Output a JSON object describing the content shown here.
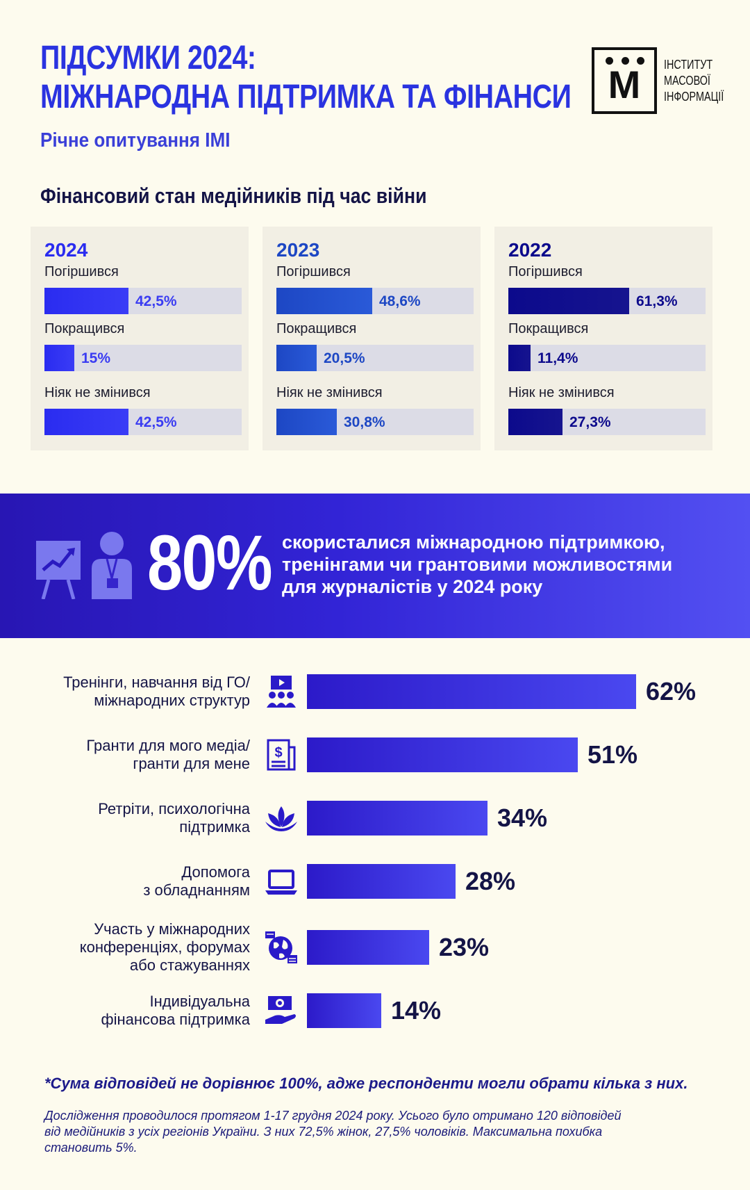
{
  "header": {
    "title_line1": "ПІДСУМКИ 2024:",
    "title_line2": "МІЖНАРОДНА ПІДТРИМКА ТА ФІНАНСИ",
    "subtitle": "Річне опитування ІМІ",
    "logo_letter": "М",
    "logo_text_1": "ІНСТИТУТ",
    "logo_text_2": "МАСОВОЇ",
    "logo_text_3": "ІНФОРМАЦІЇ"
  },
  "finance": {
    "heading": "Фінансовий стан медійників під час війни",
    "labels": [
      "Погіршився",
      "Покращився",
      "Ніяк не змінився"
    ]
  },
  "chart_data": [
    {
      "type": "bar",
      "title": "2024",
      "categories": [
        "Погіршився",
        "Покращився",
        "Ніяк не змінився"
      ],
      "values": [
        42.5,
        15,
        42.5
      ],
      "value_labels": [
        "42,5%",
        "15%",
        "42,5%"
      ],
      "color": "#2a2cf0",
      "text_color": "#3a3cf2",
      "ylim": [
        0,
        100
      ]
    },
    {
      "type": "bar",
      "title": "2023",
      "categories": [
        "Погіршився",
        "Покращився",
        "Ніяк не змінився"
      ],
      "values": [
        48.6,
        20.5,
        30.8
      ],
      "value_labels": [
        "48,6%",
        "20,5%",
        "30,8%"
      ],
      "color": "#1d47c4",
      "text_color": "#1d47c4",
      "ylim": [
        0,
        100
      ]
    },
    {
      "type": "bar",
      "title": "2022",
      "categories": [
        "Погіршився",
        "Покращився",
        "Ніяк не змінився"
      ],
      "values": [
        61.3,
        11.4,
        27.3
      ],
      "value_labels": [
        "61,3%",
        "11,4%",
        "27,3%"
      ],
      "color": "#0c0a8c",
      "text_color": "#0c0a8c",
      "ylim": [
        0,
        100
      ]
    },
    {
      "type": "bar",
      "categories": [
        "Тренінги, навчання від ГО/ міжнародних структур",
        "Гранти для мого медіа/ гранти для мене",
        "Ретріти, психологічна підтримка",
        "Допомога з обладнанням",
        "Участь у міжнародних конференціях, форумах або стажуваннях",
        "Індивідуальна фінансова підтримка"
      ],
      "values": [
        62,
        51,
        34,
        28,
        23,
        14
      ],
      "value_labels": [
        "62%",
        "51%",
        "34%",
        "28%",
        "23%",
        "14%"
      ],
      "ylim": [
        0,
        100
      ]
    }
  ],
  "banner": {
    "big_number": "80%",
    "text_line1": "скористалися міжнародною підтримкою,",
    "text_line2": "тренінгами чи грантовими можливостями",
    "text_line3": "для журналістів у 2024 року"
  },
  "support": {
    "items": [
      {
        "line1": "Тренінги, навчання від ГО/",
        "line2": "міжнародних структур",
        "line3": "",
        "icon": "training-icon"
      },
      {
        "line1": "Гранти для мого медіа/",
        "line2": "гранти для мене",
        "line3": "",
        "icon": "grant-document-icon"
      },
      {
        "line1": "Ретріти, психологічна",
        "line2": "підтримка",
        "line3": "",
        "icon": "lotus-icon"
      },
      {
        "line1": "Допомога",
        "line2": "з обладнанням",
        "line3": "",
        "icon": "laptop-icon"
      },
      {
        "line1": "Участь у міжнародних",
        "line2": "конференціях, форумах",
        "line3": "або стажуваннях",
        "icon": "globe-chat-icon"
      },
      {
        "line1": "Індивідуальна",
        "line2": "фінансова підтримка",
        "line3": "",
        "icon": "money-hand-icon"
      }
    ],
    "note": "*Сума відповідей не дорівнює 100%, адже респонденти могли обрати кілька з них.",
    "footer_line1": "Дослідження проводилося протягом 1-17 грудня 2024 року. Усього було отримано 120 відповідей",
    "footer_line2": "від медійників з усіх регіонів України. З них 72,5% жінок, 27,5% чоловіків. Максимальна похибка",
    "footer_line3": "становить 5%."
  }
}
